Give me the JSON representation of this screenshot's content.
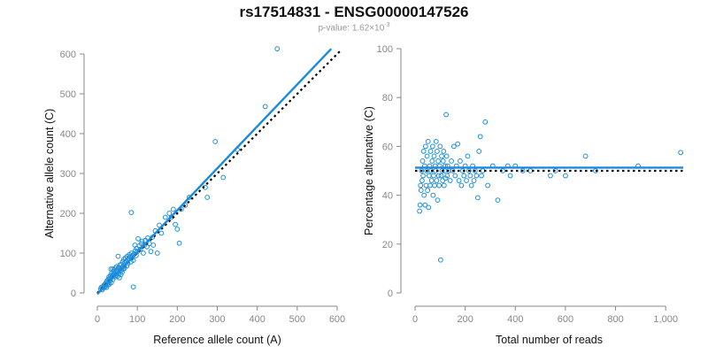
{
  "title": "rs17514831 - ENSG00000147526",
  "subtitle": {
    "prefix": "p-value: 1.62×10",
    "exponent": "-3"
  },
  "colors": {
    "points": "#1f8fd6",
    "fit_line": "#1a8ae0",
    "reference_line": "#000000",
    "axes": "#888888"
  },
  "chart_data": [
    {
      "type": "scatter",
      "xlabel": "Reference allele count (A)",
      "ylabel": "Alternative allele count (C)",
      "xlim": [
        0,
        600
      ],
      "ylim": [
        0,
        600
      ],
      "xticks": [
        0,
        100,
        200,
        300,
        400,
        500,
        600
      ],
      "yticks": [
        0,
        100,
        200,
        300,
        400,
        500,
        600
      ],
      "xtick_labels": [
        "0",
        "100",
        "200",
        "300",
        "400",
        "500",
        "600"
      ],
      "ytick_labels": [
        "0",
        "100",
        "200",
        "300",
        "400",
        "500",
        "600"
      ],
      "grid": false,
      "points": [
        [
          8,
          10
        ],
        [
          10,
          14
        ],
        [
          12,
          8
        ],
        [
          14,
          16
        ],
        [
          15,
          12
        ],
        [
          17,
          20
        ],
        [
          18,
          14
        ],
        [
          20,
          22
        ],
        [
          21,
          18
        ],
        [
          22,
          26
        ],
        [
          23,
          14
        ],
        [
          24,
          30
        ],
        [
          25,
          24
        ],
        [
          26,
          20
        ],
        [
          27,
          34
        ],
        [
          28,
          28
        ],
        [
          29,
          40
        ],
        [
          30,
          22
        ],
        [
          31,
          36
        ],
        [
          32,
          30
        ],
        [
          33,
          44
        ],
        [
          34,
          38
        ],
        [
          35,
          26
        ],
        [
          36,
          50
        ],
        [
          37,
          42
        ],
        [
          38,
          60
        ],
        [
          39,
          34
        ],
        [
          40,
          46
        ],
        [
          41,
          54
        ],
        [
          42,
          58
        ],
        [
          43,
          48
        ],
        [
          44,
          40
        ],
        [
          45,
          62
        ],
        [
          46,
          52
        ],
        [
          47,
          44
        ],
        [
          48,
          66
        ],
        [
          49,
          56
        ],
        [
          50,
          50
        ],
        [
          51,
          42
        ],
        [
          52,
          60
        ],
        [
          53,
          64
        ],
        [
          54,
          48
        ],
        [
          55,
          38
        ],
        [
          56,
          70
        ],
        [
          57,
          56
        ],
        [
          58,
          62
        ],
        [
          59,
          46
        ],
        [
          60,
          72
        ],
        [
          61,
          58
        ],
        [
          62,
          52
        ],
        [
          63,
          78
        ],
        [
          64,
          66
        ],
        [
          65,
          60
        ],
        [
          66,
          84
        ],
        [
          67,
          70
        ],
        [
          68,
          62
        ],
        [
          69,
          76
        ],
        [
          70,
          88
        ],
        [
          72,
          80
        ],
        [
          74,
          68
        ],
        [
          75,
          92
        ],
        [
          76,
          74
        ],
        [
          78,
          86
        ],
        [
          80,
          96
        ],
        [
          82,
          90
        ],
        [
          84,
          78
        ],
        [
          85,
          100
        ],
        [
          86,
          88
        ],
        [
          88,
          94
        ],
        [
          90,
          82
        ],
        [
          92,
          98
        ],
        [
          94,
          120
        ],
        [
          95,
          106
        ],
        [
          97,
          94
        ],
        [
          98,
          112
        ],
        [
          100,
          104
        ],
        [
          102,
          136
        ],
        [
          105,
          118
        ],
        [
          108,
          110
        ],
        [
          110,
          124
        ],
        [
          112,
          130
        ],
        [
          115,
          100
        ],
        [
          118,
          120
        ],
        [
          120,
          132
        ],
        [
          124,
          116
        ],
        [
          126,
          138
        ],
        [
          130,
          124
        ],
        [
          134,
          104
        ],
        [
          138,
          140
        ],
        [
          140,
          120
        ],
        [
          145,
          156
        ],
        [
          150,
          100
        ],
        [
          155,
          170
        ],
        [
          160,
          150
        ],
        [
          170,
          190
        ],
        [
          180,
          200
        ],
        [
          185,
          190
        ],
        [
          190,
          210
        ],
        [
          195,
          172
        ],
        [
          200,
          160
        ],
        [
          205,
          125
        ],
        [
          210,
          210
        ],
        [
          220,
          220
        ],
        [
          230,
          240
        ],
        [
          270,
          265
        ],
        [
          275,
          240
        ],
        [
          295,
          380
        ],
        [
          315,
          290
        ],
        [
          350,
          360
        ],
        [
          420,
          468
        ],
        [
          450,
          613
        ],
        [
          85,
          202
        ],
        [
          90,
          15
        ],
        [
          52,
          92
        ],
        [
          34,
          60
        ]
      ],
      "fit_line": [
        [
          0,
          -3
        ],
        [
          585,
          613
        ]
      ],
      "reference_line": [
        [
          0,
          0
        ],
        [
          610,
          610
        ]
      ]
    },
    {
      "type": "scatter",
      "xlabel": "Total number of reads",
      "ylabel": "Percentage alternative (C)",
      "xlim": [
        0,
        1070
      ],
      "ylim": [
        0,
        100
      ],
      "xticks": [
        0,
        200,
        400,
        600,
        800,
        1000
      ],
      "yticks": [
        0,
        20,
        40,
        60,
        80,
        100
      ],
      "xtick_labels": [
        "0",
        "200",
        "400",
        "600",
        "800",
        "1,000"
      ],
      "ytick_labels": [
        "0",
        "20",
        "40",
        "60",
        "80",
        "100"
      ],
      "grid": false,
      "points": [
        [
          18,
          33.5
        ],
        [
          20,
          36
        ],
        [
          22,
          44
        ],
        [
          24,
          42
        ],
        [
          26,
          50
        ],
        [
          28,
          46
        ],
        [
          30,
          54
        ],
        [
          32,
          48
        ],
        [
          34,
          58
        ],
        [
          36,
          40
        ],
        [
          38,
          52
        ],
        [
          40,
          36
        ],
        [
          42,
          60
        ],
        [
          44,
          44
        ],
        [
          46,
          50
        ],
        [
          48,
          56
        ],
        [
          50,
          42
        ],
        [
          52,
          62
        ],
        [
          54,
          35
        ],
        [
          56,
          48
        ],
        [
          58,
          52
        ],
        [
          60,
          44
        ],
        [
          62,
          58
        ],
        [
          64,
          50
        ],
        [
          66,
          46
        ],
        [
          68,
          54
        ],
        [
          70,
          60
        ],
        [
          72,
          40
        ],
        [
          74,
          48
        ],
        [
          76,
          56
        ],
        [
          78,
          44
        ],
        [
          80,
          52
        ],
        [
          82,
          50
        ],
        [
          84,
          62
        ],
        [
          86,
          46
        ],
        [
          88,
          58
        ],
        [
          90,
          38
        ],
        [
          92,
          54
        ],
        [
          94,
          48
        ],
        [
          96,
          44
        ],
        [
          98,
          52
        ],
        [
          100,
          60
        ],
        [
          102,
          13.5
        ],
        [
          104,
          48
        ],
        [
          106,
          56
        ],
        [
          108,
          50
        ],
        [
          110,
          46
        ],
        [
          112,
          54
        ],
        [
          114,
          58
        ],
        [
          116,
          44
        ],
        [
          118,
          50
        ],
        [
          120,
          52
        ],
        [
          122,
          47
        ],
        [
          124,
          73
        ],
        [
          126,
          56
        ],
        [
          128,
          48
        ],
        [
          130,
          52
        ],
        [
          135,
          50
        ],
        [
          140,
          46
        ],
        [
          145,
          54
        ],
        [
          150,
          50
        ],
        [
          155,
          60
        ],
        [
          160,
          48
        ],
        [
          165,
          52
        ],
        [
          170,
          61
        ],
        [
          175,
          46
        ],
        [
          180,
          54
        ],
        [
          185,
          44
        ],
        [
          190,
          50
        ],
        [
          195,
          48
        ],
        [
          200,
          52
        ],
        [
          205,
          46
        ],
        [
          210,
          56
        ],
        [
          215,
          50
        ],
        [
          220,
          48
        ],
        [
          225,
          44
        ],
        [
          230,
          52
        ],
        [
          235,
          46
        ],
        [
          240,
          50
        ],
        [
          245,
          48
        ],
        [
          250,
          39
        ],
        [
          255,
          58
        ],
        [
          260,
          64
        ],
        [
          265,
          48
        ],
        [
          270,
          50
        ],
        [
          280,
          70
        ],
        [
          290,
          44
        ],
        [
          310,
          52
        ],
        [
          330,
          38
        ],
        [
          350,
          50
        ],
        [
          370,
          52
        ],
        [
          380,
          48
        ],
        [
          400,
          52
        ],
        [
          430,
          50
        ],
        [
          460,
          50
        ],
        [
          540,
          48
        ],
        [
          560,
          50
        ],
        [
          600,
          48
        ],
        [
          680,
          56
        ],
        [
          720,
          50
        ],
        [
          890,
          52
        ],
        [
          1060,
          57.5
        ]
      ],
      "fit_line": [
        [
          0,
          51.3
        ],
        [
          1070,
          51.3
        ]
      ],
      "reference_line": [
        [
          0,
          50
        ],
        [
          1070,
          50
        ]
      ]
    }
  ]
}
